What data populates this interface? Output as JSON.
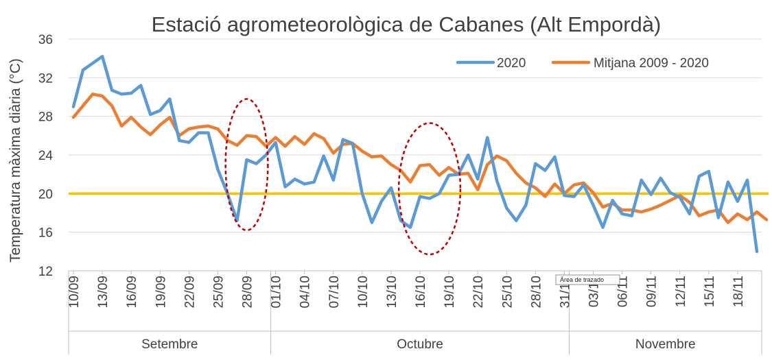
{
  "chart_data": {
    "type": "line",
    "title": "Estació agrometeorològica de Cabanes (Alt Empordà)",
    "ylabel": "Temperatura màxima diària (°C)",
    "ylim": [
      12,
      36
    ],
    "yticks": [
      "12",
      "16",
      "20",
      "24",
      "28",
      "32",
      "36"
    ],
    "grid": "horizontal",
    "legend_position": "top-right",
    "x_tick_labels": [
      "10/09",
      "13/09",
      "16/09",
      "19/09",
      "22/09",
      "25/09",
      "28/09",
      "01/10",
      "04/10",
      "07/10",
      "10/10",
      "13/10",
      "16/10",
      "19/10",
      "22/10",
      "25/10",
      "28/10",
      "31/10",
      "03/11",
      "06/11",
      "09/11",
      "12/11",
      "15/11",
      "18/11"
    ],
    "months": [
      {
        "name": "Setembre",
        "start_day": 0,
        "end_day": 21
      },
      {
        "name": "Octubre",
        "start_day": 21,
        "end_day": 52
      },
      {
        "name": "Novembre",
        "start_day": 52,
        "end_day": 72
      }
    ],
    "reference_line": {
      "y": 20,
      "color": "#ffc000"
    },
    "series": [
      {
        "name": "2020",
        "color": "#5b9bd5",
        "values": [
          29.0,
          32.8,
          33.5,
          34.2,
          30.7,
          30.3,
          30.4,
          31.2,
          28.2,
          28.6,
          29.8,
          25.5,
          25.3,
          26.3,
          26.3,
          22.5,
          20.0,
          17.2,
          23.5,
          23.1,
          24.0,
          25.3,
          20.7,
          21.5,
          21.0,
          21.2,
          23.9,
          21.4,
          25.6,
          25.2,
          20.0,
          17.0,
          19.2,
          20.6,
          17.2,
          16.5,
          19.7,
          19.5,
          20.0,
          21.9,
          22.0,
          24.0,
          21.5,
          25.8,
          21.3,
          18.5,
          17.2,
          18.8,
          23.1,
          22.4,
          23.8,
          19.8,
          19.7,
          20.9,
          18.8,
          16.5,
          19.3,
          17.9,
          17.7,
          21.4,
          19.9,
          21.6,
          20.1,
          19.6,
          17.9,
          21.8,
          22.3,
          17.5,
          21.2,
          19.2,
          21.4,
          14.0
        ]
      },
      {
        "name": "Mitjana 2009 - 2020",
        "color": "#ed7d31",
        "values": [
          27.9,
          29.1,
          30.3,
          30.1,
          29.1,
          27.0,
          27.9,
          26.9,
          26.1,
          27.1,
          27.9,
          26.0,
          26.7,
          26.9,
          27.0,
          26.7,
          25.5,
          25.0,
          26.0,
          25.9,
          24.9,
          25.8,
          24.9,
          25.9,
          25.1,
          26.2,
          25.7,
          24.2,
          25.1,
          25.2,
          24.4,
          23.8,
          23.9,
          23.0,
          22.4,
          21.2,
          22.9,
          23.0,
          21.9,
          22.7,
          22.0,
          22.1,
          20.4,
          23.0,
          23.9,
          23.4,
          22.1,
          21.1,
          20.6,
          19.7,
          21.0,
          20.0,
          20.9,
          21.1,
          20.1,
          18.6,
          19.0,
          18.3,
          18.3,
          18.1,
          18.4,
          18.8,
          19.3,
          19.8,
          19.1,
          17.7,
          18.1,
          18.3,
          17.0,
          17.9,
          17.3,
          18.1,
          17.3
        ]
      }
    ],
    "annotations": [
      {
        "type": "dashed-ellipse",
        "color": "#c00000",
        "center_day": 18,
        "center_y": 23.0,
        "radius_days": 2.2,
        "radius_y": 6.8
      },
      {
        "type": "dashed-ellipse",
        "color": "#c00000",
        "center_day": 37,
        "center_y": 20.5,
        "radius_days": 3.2,
        "radius_y": 6.8
      }
    ],
    "tooltip": "Área de trazado"
  }
}
